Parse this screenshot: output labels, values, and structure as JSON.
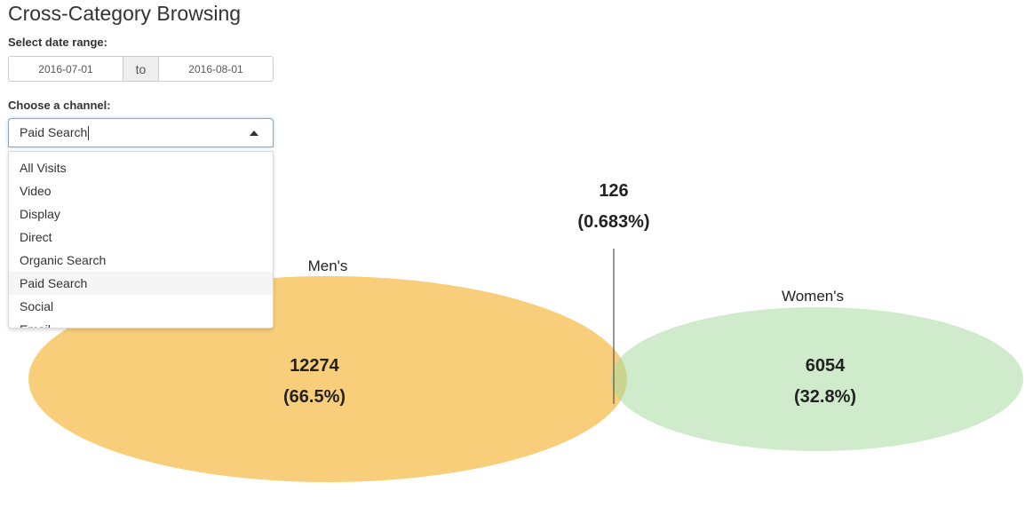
{
  "page_title": "Cross-Category Browsing",
  "date_range": {
    "label": "Select date range:",
    "start": "2016-07-01",
    "separator": "to",
    "end": "2016-08-01"
  },
  "channel": {
    "label": "Choose a channel:",
    "selected": "Paid Search",
    "options": [
      "All Visits",
      "Video",
      "Display",
      "Direct",
      "Organic Search",
      "Paid Search",
      "Social",
      "Email"
    ]
  },
  "venn": {
    "sets": [
      {
        "name": "Men's",
        "count": "12274",
        "percent": "(66.5%)",
        "color": "#f5b942"
      },
      {
        "name": "Women's",
        "count": "6054",
        "percent": "(32.8%)",
        "color": "#a8dba0"
      }
    ],
    "overlap": {
      "count": "126",
      "percent": "(0.683%)"
    }
  }
}
